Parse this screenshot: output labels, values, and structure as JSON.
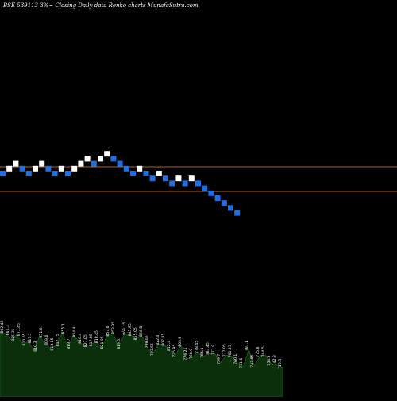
{
  "chart_data": {
    "type": "renko",
    "title": "BSE 539113 3%~ Closing Daily data Renko charts MunafaSutra.com",
    "price_levels": [
      {
        "name": "upper",
        "color": "#b5601d"
      },
      {
        "name": "lower",
        "color": "#b5601d"
      }
    ],
    "bricks": [
      "down",
      "up",
      "up",
      "down",
      "down",
      "up",
      "up",
      "down",
      "down",
      "up",
      "down",
      "up",
      "up",
      "up",
      "down",
      "up",
      "up",
      "down",
      "down",
      "down",
      "down",
      "up",
      "down",
      "down",
      "up",
      "down",
      "down",
      "up",
      "down",
      "up",
      "down",
      "down",
      "down",
      "down",
      "down",
      "down",
      "down"
    ],
    "volume_labels": [
      "882.45",
      "861.3",
      "825.35",
      "871.45",
      "820.05",
      "817.1",
      "810.3",
      "851.6",
      "809.6",
      "813.85",
      "817.75",
      "855.1",
      "819.7",
      "854.4",
      "816.4",
      "827.05",
      "817.85",
      "818.45",
      "821.05",
      "857.6",
      "853.35",
      "819.5",
      "863.15",
      "845.95",
      "855.05",
      "856.8",
      "798.65",
      "793.55",
      "822.4",
      "807.05",
      "812.4",
      "775.95",
      "803.8",
      "776.25",
      "768.9",
      "778.45",
      "784.6",
      "783.45",
      "771.9",
      "759.7",
      "777.05",
      "761.25",
      "760.1",
      "731.6",
      "787.1",
      "747.85",
      "775.8",
      "764.5",
      "754.3",
      "742.8",
      "715.5"
    ],
    "colors": {
      "up": "#ffffff",
      "down": "#1e6ee6",
      "background": "#000000",
      "volume_fill": "#0b2e0b",
      "volume_line": "#1a5a1a",
      "level_line": "#b5601d"
    }
  }
}
